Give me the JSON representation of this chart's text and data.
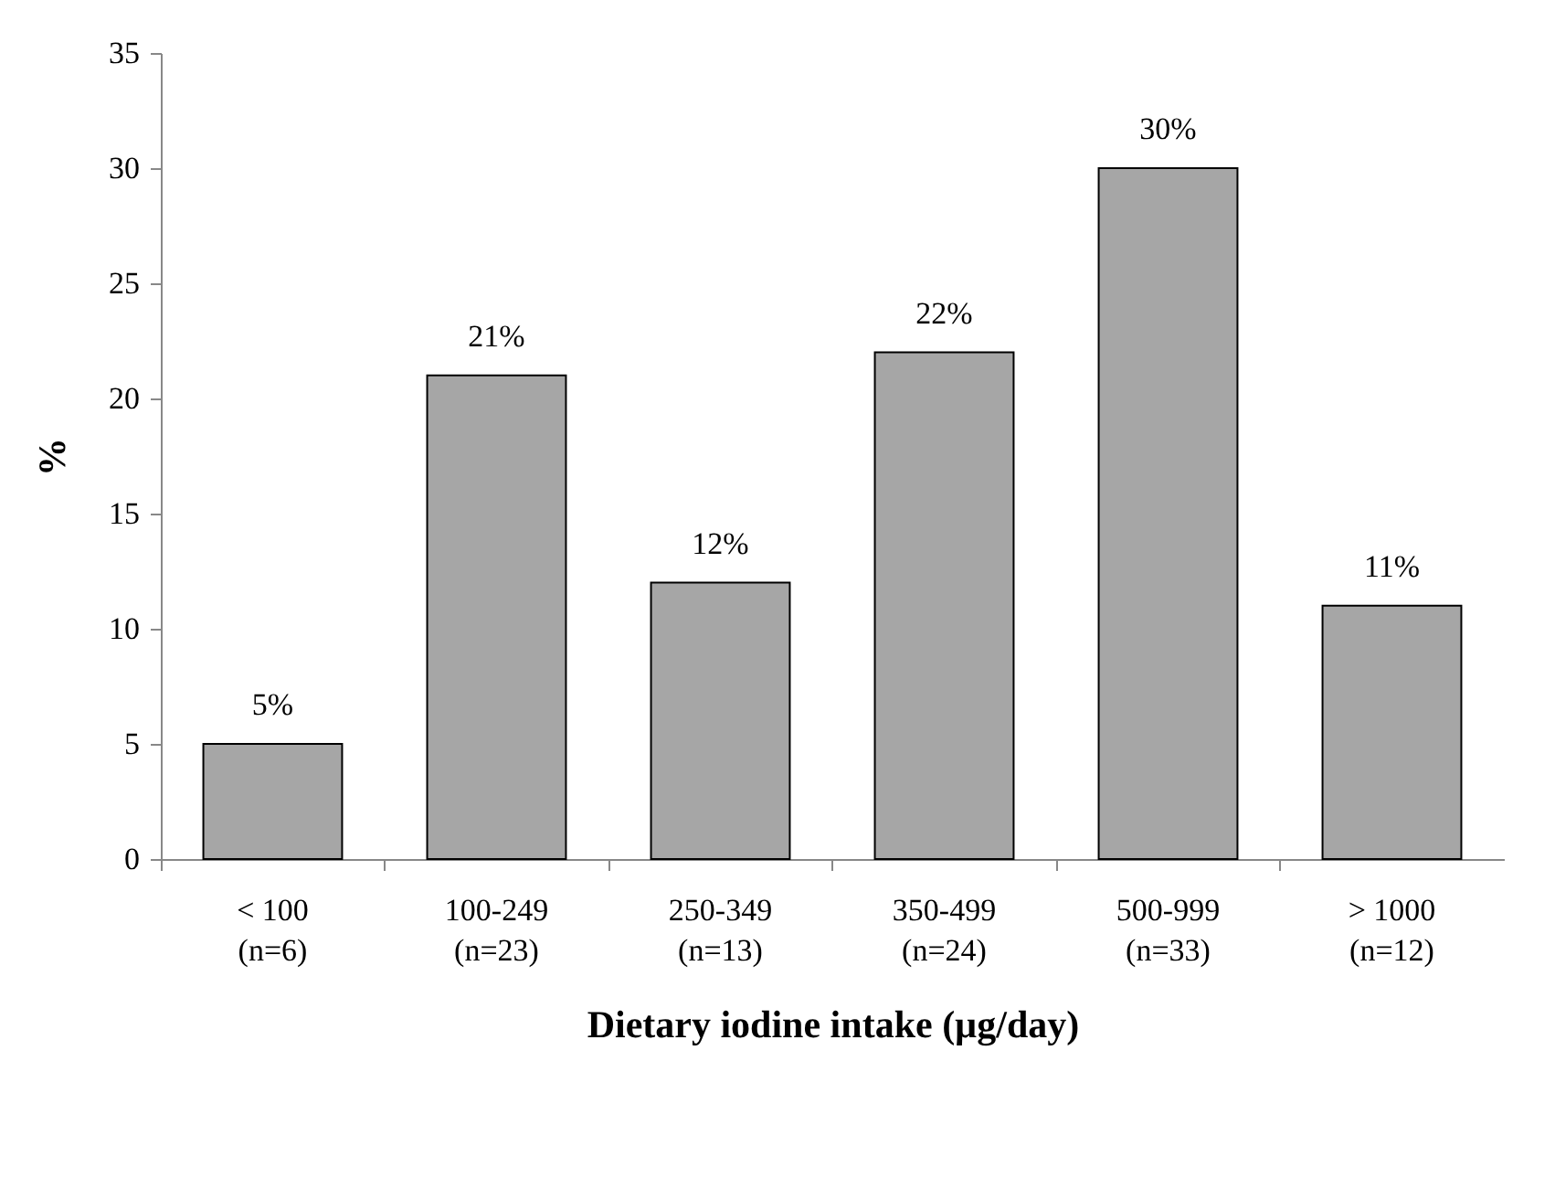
{
  "chart_data": {
    "type": "bar",
    "xlabel": "Dietary iodine intake (µg/day)",
    "ylabel": "%",
    "categories": [
      "< 100\n(n=6)",
      "100-249\n(n=23)",
      "250-349\n(n=13)",
      "350-499\n(n=24)",
      "500-999\n(n=33)",
      "> 1000\n(n=12)"
    ],
    "values": [
      5,
      21,
      12,
      22,
      30,
      11
    ],
    "value_labels": [
      "5%",
      "21%",
      "12%",
      "22%",
      "30%",
      "11%"
    ],
    "color": "#a6a6a6",
    "ylim": [
      0,
      35
    ],
    "yticks": [
      0,
      5,
      10,
      15,
      20,
      25,
      30,
      35
    ],
    "grid": false
  }
}
